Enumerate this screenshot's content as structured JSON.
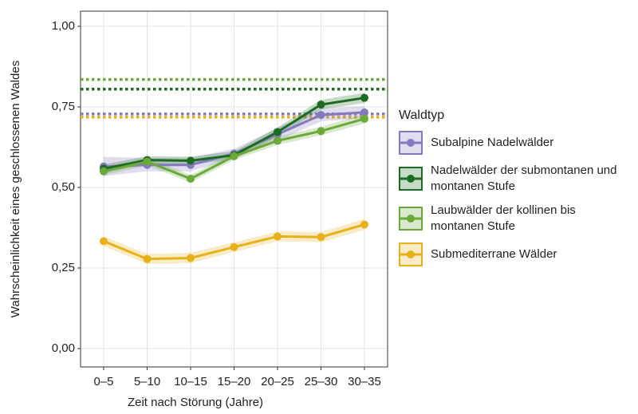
{
  "chart_data": {
    "type": "line",
    "x_label": "Zeit nach Störung (Jahre)",
    "y_label": "Wahrscheinlichkeit eines geschlossenen Waldes",
    "categories": [
      "0–5",
      "5–10",
      "10–15",
      "15–20",
      "20–25",
      "25–30",
      "30–35"
    ],
    "ylim": [
      -0.057,
      1.047
    ],
    "yticks": [
      {
        "value": 0,
        "label": "0,00"
      },
      {
        "value": 0.25,
        "label": "0,25"
      },
      {
        "value": 0.5,
        "label": "0,50"
      },
      {
        "value": 0.75,
        "label": "0,75"
      },
      {
        "value": 1,
        "label": "1,00"
      }
    ],
    "grid": true,
    "legend_title": "Waldtyp",
    "legend_position": "right",
    "series": [
      {
        "name": "Subalpine Nadelwälder",
        "color": "#8379bd",
        "values": [
          0.565,
          0.57,
          0.57,
          0.605,
          0.665,
          0.725,
          0.733
        ],
        "lower": [
          0.535,
          0.55,
          0.55,
          0.59,
          0.645,
          0.705,
          0.715
        ],
        "upper": [
          0.595,
          0.592,
          0.592,
          0.62,
          0.685,
          0.745,
          0.752
        ],
        "reference": 0.728
      },
      {
        "name": "Nadelwälder der submontanen und montanen Stufe",
        "color": "#1c6b22",
        "values": [
          0.558,
          0.585,
          0.583,
          0.6,
          0.672,
          0.757,
          0.778
        ],
        "lower": [
          0.545,
          0.573,
          0.57,
          0.588,
          0.658,
          0.742,
          0.762
        ],
        "upper": [
          0.571,
          0.597,
          0.596,
          0.612,
          0.686,
          0.772,
          0.794
        ],
        "reference": 0.805
      },
      {
        "name": "Laubwälder der kollinen bis montanen Stufe",
        "color": "#6aa93a",
        "values": [
          0.55,
          0.58,
          0.527,
          0.597,
          0.645,
          0.675,
          0.713
        ],
        "lower": [
          0.538,
          0.568,
          0.515,
          0.585,
          0.632,
          0.662,
          0.698
        ],
        "upper": [
          0.562,
          0.592,
          0.539,
          0.609,
          0.658,
          0.688,
          0.728
        ],
        "reference": 0.835
      },
      {
        "name": "Submediterrane Wälder",
        "color": "#e6b11b",
        "values": [
          0.333,
          0.278,
          0.281,
          0.315,
          0.348,
          0.346,
          0.385
        ],
        "lower": [
          0.318,
          0.262,
          0.265,
          0.3,
          0.333,
          0.33,
          0.368
        ],
        "upper": [
          0.348,
          0.294,
          0.297,
          0.33,
          0.363,
          0.362,
          0.402
        ],
        "reference": 0.718
      }
    ]
  }
}
